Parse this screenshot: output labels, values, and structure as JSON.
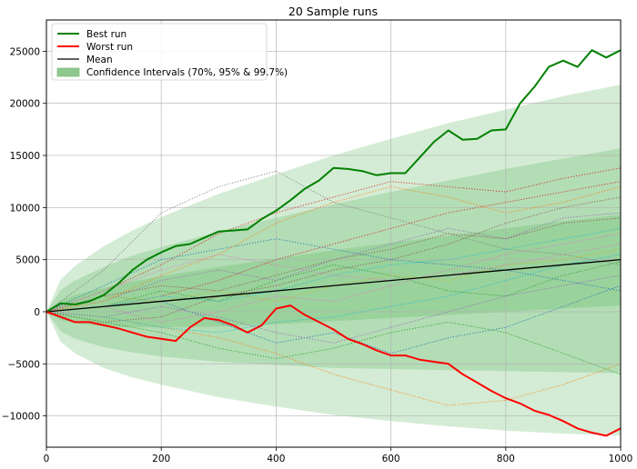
{
  "chart_data": {
    "type": "line",
    "title": "20 Sample runs",
    "xlabel": "",
    "ylabel": "",
    "xlim": [
      0,
      1000
    ],
    "ylim": [
      -13000,
      28000
    ],
    "grid": true,
    "legend_position": "top-left",
    "x_ticks": [
      0,
      200,
      400,
      600,
      800,
      1000
    ],
    "y_ticks": [
      -10000,
      -5000,
      0,
      5000,
      10000,
      15000,
      20000,
      25000
    ],
    "x_tick_labels": [
      "0",
      "200",
      "400",
      "600",
      "800",
      "1000"
    ],
    "y_tick_labels": [
      "−10000",
      "−5000",
      "0",
      "5000",
      "10000",
      "15000",
      "20000",
      "25000"
    ],
    "legend": [
      {
        "label": "Best run",
        "color": "#008000",
        "kind": "line"
      },
      {
        "label": "Worst run",
        "color": "#ff0000",
        "kind": "line"
      },
      {
        "label": "Mean",
        "color": "#000000",
        "kind": "line"
      },
      {
        "label": "Confidence Intervals (70%, 95% & 99.7%)",
        "color": "#7fbf7f",
        "kind": "patch"
      }
    ],
    "mean": {
      "x": [
        0,
        1000
      ],
      "y": [
        0,
        5000
      ]
    },
    "confidence_bands": {
      "x": [
        0,
        25,
        50,
        100,
        150,
        200,
        300,
        400,
        500,
        600,
        700,
        800,
        900,
        1000
      ],
      "upper_99_7": [
        0,
        3100,
        4400,
        6300,
        7800,
        9100,
        11300,
        13200,
        15000,
        16600,
        18100,
        19400,
        20700,
        21800
      ],
      "lower_99_7": [
        0,
        -2900,
        -4000,
        -5400,
        -6300,
        -7000,
        -8200,
        -9100,
        -9900,
        -10500,
        -11000,
        -11400,
        -11700,
        -11900
      ],
      "upper_95": [
        0,
        2100,
        3000,
        4300,
        5400,
        6200,
        7700,
        9000,
        10300,
        11500,
        12600,
        13700,
        14700,
        15700
      ],
      "lower_95": [
        0,
        -1900,
        -2600,
        -3400,
        -3900,
        -4300,
        -4800,
        -5100,
        -5400,
        -5500,
        -5600,
        -5700,
        -5800,
        -5900
      ],
      "upper_70": [
        0,
        1100,
        1600,
        2300,
        2900,
        3400,
        4300,
        5100,
        5900,
        6600,
        7300,
        8000,
        8700,
        9300
      ],
      "lower_70": [
        0,
        -800,
        -1100,
        -1400,
        -1500,
        -1500,
        -1400,
        -1200,
        -900,
        -600,
        -300,
        0,
        300,
        600
      ]
    },
    "series": [
      {
        "name": "Best run",
        "color": "#008000",
        "x": [
          0,
          25,
          50,
          75,
          100,
          125,
          150,
          175,
          200,
          225,
          250,
          275,
          300,
          325,
          350,
          375,
          400,
          425,
          450,
          475,
          500,
          525,
          550,
          575,
          600,
          625,
          650,
          675,
          700,
          725,
          750,
          775,
          800,
          825,
          850,
          875,
          900,
          925,
          950,
          975,
          1000
        ],
        "y": [
          0,
          800,
          700,
          1000,
          1600,
          2700,
          4000,
          5000,
          5700,
          6300,
          6500,
          7100,
          7700,
          7800,
          7900,
          8900,
          9700,
          10700,
          11800,
          12600,
          13800,
          13700,
          13500,
          13100,
          13300,
          13300,
          14800,
          16300,
          17400,
          16500,
          16600,
          17400,
          17500,
          20000,
          21600,
          23500,
          24100,
          23500,
          25100,
          24400,
          25100
        ]
      },
      {
        "name": "Worst run",
        "color": "#ff0000",
        "x": [
          0,
          25,
          50,
          75,
          100,
          125,
          150,
          175,
          200,
          225,
          250,
          275,
          300,
          325,
          350,
          375,
          400,
          425,
          450,
          475,
          500,
          525,
          550,
          575,
          600,
          625,
          650,
          675,
          700,
          725,
          750,
          775,
          800,
          825,
          850,
          875,
          900,
          925,
          950,
          975,
          1000
        ],
        "y": [
          0,
          -500,
          -1000,
          -1000,
          -1300,
          -1600,
          -2000,
          -2400,
          -2600,
          -2800,
          -1500,
          -600,
          -800,
          -1300,
          -2000,
          -1300,
          300,
          600,
          -300,
          -1000,
          -1700,
          -2600,
          -3100,
          -3700,
          -4200,
          -4200,
          -4600,
          -4800,
          -5000,
          -6000,
          -6800,
          -7600,
          -8300,
          -8800,
          -9500,
          -9900,
          -10500,
          -11200,
          -11600,
          -11900,
          -11200
        ]
      },
      {
        "color": "#1f77b4",
        "x": [
          0,
          100,
          200,
          300,
          400,
          500,
          600,
          700,
          800,
          900,
          1000
        ],
        "y": [
          0,
          1500,
          1000,
          -1000,
          -3000,
          -2000,
          -4000,
          -2500,
          -1500,
          500,
          2500
        ]
      },
      {
        "color": "#ff7f0e",
        "x": [
          0,
          100,
          200,
          300,
          400,
          500,
          600,
          700,
          800,
          900,
          1000
        ],
        "y": [
          0,
          -500,
          -1500,
          -2500,
          -4000,
          -6000,
          -7500,
          -9000,
          -8500,
          -7000,
          -5000
        ]
      },
      {
        "color": "#2ca02c",
        "x": [
          0,
          100,
          200,
          300,
          400,
          500,
          600,
          700,
          800,
          900,
          1000
        ],
        "y": [
          0,
          500,
          2000,
          1000,
          3000,
          4500,
          3500,
          2000,
          1500,
          3500,
          4800
        ]
      },
      {
        "color": "#d62728",
        "x": [
          0,
          100,
          200,
          300,
          400,
          500,
          600,
          700,
          800,
          900,
          1000
        ],
        "y": [
          0,
          2000,
          4500,
          7500,
          9500,
          11000,
          12500,
          12000,
          11500,
          12800,
          13800
        ]
      },
      {
        "color": "#9467bd",
        "x": [
          0,
          100,
          200,
          300,
          400,
          500,
          600,
          700,
          800,
          900,
          1000
        ],
        "y": [
          0,
          1000,
          3000,
          4000,
          3000,
          5000,
          6500,
          8000,
          7000,
          9000,
          9500
        ]
      },
      {
        "color": "#8c564b",
        "x": [
          0,
          100,
          200,
          300,
          400,
          500,
          600,
          700,
          800,
          900,
          1000
        ],
        "y": [
          0,
          -1000,
          -500,
          1500,
          2500,
          4000,
          5000,
          6500,
          8500,
          10000,
          11000
        ]
      },
      {
        "color": "#e377c2",
        "x": [
          0,
          100,
          200,
          300,
          400,
          500,
          600,
          700,
          800,
          900,
          1000
        ],
        "y": [
          0,
          500,
          -1000,
          0,
          1500,
          1000,
          2500,
          4000,
          5500,
          6500,
          7500
        ]
      },
      {
        "color": "#7f7f7f",
        "x": [
          0,
          100,
          200,
          300,
          400,
          500,
          600,
          700,
          800,
          900,
          1000
        ],
        "y": [
          0,
          4000,
          9500,
          12000,
          13500,
          10500,
          9000,
          7500,
          6000,
          5500,
          4500
        ]
      },
      {
        "color": "#bcbd22",
        "x": [
          0,
          100,
          200,
          300,
          400,
          500,
          600,
          700,
          800,
          900,
          1000
        ],
        "y": [
          0,
          1500,
          1000,
          2000,
          1000,
          2500,
          3500,
          3000,
          4500,
          5000,
          6000
        ]
      },
      {
        "color": "#17becf",
        "x": [
          0,
          100,
          200,
          300,
          400,
          500,
          600,
          700,
          800,
          900,
          1000
        ],
        "y": [
          0,
          -500,
          -1500,
          -2000,
          -1000,
          -500,
          500,
          1500,
          3000,
          4500,
          5500
        ]
      },
      {
        "color": "#1f77b4",
        "x": [
          0,
          100,
          200,
          300,
          400,
          500,
          600,
          700,
          800,
          900,
          1000
        ],
        "y": [
          0,
          2500,
          5000,
          6000,
          7000,
          6000,
          5000,
          4500,
          4000,
          3000,
          2000
        ]
      },
      {
        "color": "#ff7f0e",
        "x": [
          0,
          100,
          200,
          300,
          400,
          500,
          600,
          700,
          800,
          900,
          1000
        ],
        "y": [
          0,
          1000,
          3500,
          5500,
          8500,
          10500,
          12000,
          11000,
          9500,
          10500,
          12000
        ]
      },
      {
        "color": "#2ca02c",
        "x": [
          0,
          100,
          200,
          300,
          400,
          500,
          600,
          700,
          800,
          900,
          1000
        ],
        "y": [
          0,
          -1000,
          -2000,
          -3500,
          -4500,
          -3500,
          -2000,
          -1000,
          -2000,
          -4000,
          -6000
        ]
      },
      {
        "color": "#d62728",
        "x": [
          0,
          100,
          200,
          300,
          400,
          500,
          600,
          700,
          800,
          900,
          1000
        ],
        "y": [
          0,
          500,
          1500,
          3000,
          5000,
          6500,
          8000,
          9500,
          10500,
          11500,
          12500
        ]
      },
      {
        "color": "#9467bd",
        "x": [
          0,
          100,
          200,
          300,
          400,
          500,
          600,
          700,
          800,
          900,
          1000
        ],
        "y": [
          0,
          -500,
          500,
          -500,
          -2000,
          -3000,
          -1500,
          0,
          1500,
          2500,
          3500
        ]
      },
      {
        "color": "#8c564b",
        "x": [
          0,
          100,
          200,
          300,
          400,
          500,
          600,
          700,
          800,
          900,
          1000
        ],
        "y": [
          0,
          1500,
          2500,
          2000,
          3500,
          5000,
          6000,
          7500,
          7000,
          8500,
          9000
        ]
      },
      {
        "color": "#e377c2",
        "x": [
          0,
          100,
          200,
          300,
          400,
          500,
          600,
          700,
          800,
          900,
          1000
        ],
        "y": [
          0,
          2000,
          4000,
          5500,
          4500,
          3500,
          3000,
          3500,
          4500,
          5500,
          6500
        ]
      },
      {
        "color": "#17becf",
        "x": [
          0,
          100,
          200,
          300,
          400,
          500,
          600,
          700,
          800,
          900,
          1000
        ],
        "y": [
          0,
          500,
          1500,
          1000,
          2000,
          3500,
          4500,
          5000,
          6000,
          7000,
          8000
        ]
      }
    ]
  }
}
